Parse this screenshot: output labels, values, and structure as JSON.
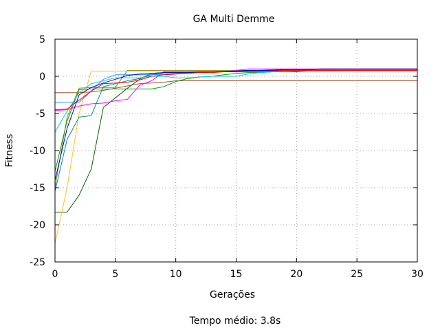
{
  "chart_data": {
    "type": "line",
    "title": "GA Multi Demme",
    "xlabel": "Gerações",
    "ylabel": "Fitness",
    "footer": "Tempo médio: 3.8s",
    "xlim": [
      0,
      30
    ],
    "ylim": [
      -25,
      5
    ],
    "xticks": [
      0,
      5,
      10,
      15,
      20,
      25,
      30
    ],
    "yticks": [
      -25,
      -20,
      -15,
      -10,
      -5,
      0,
      5
    ],
    "grid": true,
    "series": [
      {
        "color": "#a0522d",
        "x": [
          0,
          1,
          2,
          3,
          4,
          5,
          6,
          7,
          8,
          9,
          10,
          11,
          12,
          13,
          14,
          15,
          16,
          17,
          18,
          19,
          20,
          21,
          22,
          23,
          24,
          25,
          26,
          27,
          28,
          29,
          30
        ],
        "y": [
          -2.2,
          -2.2,
          -2.2,
          -2.1,
          -1.9,
          -1.6,
          -1.3,
          -1.0,
          -0.9,
          -0.8,
          -0.6,
          -0.6,
          -0.6,
          -0.6,
          -0.6,
          -0.6,
          -0.6,
          -0.6,
          -0.6,
          -0.6,
          -0.6,
          -0.6,
          -0.6,
          -0.6,
          -0.6,
          -0.6,
          -0.6,
          -0.6,
          -0.6,
          -0.6,
          -0.6
        ]
      },
      {
        "color": "#006400",
        "x": [
          0,
          1,
          2,
          3,
          4,
          5,
          6,
          7,
          8,
          9,
          10,
          11,
          12,
          13,
          14,
          15,
          16,
          17,
          18,
          19,
          20,
          21,
          22,
          23,
          24,
          25,
          26,
          27,
          28,
          29,
          30
        ],
        "y": [
          -18.3,
          -18.3,
          -16.0,
          -12.5,
          -4.2,
          -2.9,
          -1.6,
          -0.4,
          0.4,
          0.5,
          0.5,
          0.5,
          0.5,
          0.6,
          0.6,
          0.6,
          0.6,
          0.6,
          0.6,
          0.6,
          0.6,
          0.7,
          0.7,
          0.7,
          0.8,
          0.8,
          0.8,
          0.8,
          0.8,
          0.8,
          0.8
        ]
      },
      {
        "color": "#8b8b00",
        "x": [
          0,
          1,
          2,
          3,
          4,
          5,
          6,
          7,
          8,
          9,
          10,
          11,
          12,
          13,
          14,
          15,
          16,
          17,
          18,
          19,
          20,
          21,
          22,
          23,
          24,
          25,
          26,
          27,
          28,
          29,
          30
        ],
        "y": [
          -15.0,
          -5.5,
          -1.6,
          -1.5,
          -1.5,
          -1.5,
          0.8,
          0.8,
          0.8,
          0.8,
          0.8,
          0.8,
          0.8,
          0.8,
          0.8,
          0.8,
          0.8,
          0.8,
          0.8,
          0.8,
          0.8,
          0.8,
          0.8,
          0.8,
          0.8,
          0.8,
          0.8,
          0.8,
          0.8,
          0.8,
          0.8
        ]
      },
      {
        "color": "#ffc020",
        "x": [
          0,
          1,
          2,
          3,
          4,
          5,
          6,
          7,
          8,
          9,
          10,
          11,
          12,
          13,
          14,
          15,
          16,
          17,
          18,
          19,
          20,
          21,
          22,
          23,
          24,
          25,
          26,
          27,
          28,
          29,
          30
        ],
        "y": [
          -22.5,
          -15.0,
          -5.0,
          0.7,
          0.7,
          0.7,
          0.7,
          0.7,
          0.7,
          0.7,
          0.7,
          0.7,
          0.7,
          0.7,
          0.7,
          0.7,
          0.7,
          0.7,
          0.7,
          0.7,
          0.7,
          0.7,
          0.7,
          0.7,
          0.7,
          0.7,
          0.7,
          0.7,
          0.7,
          0.7,
          0.7
        ]
      },
      {
        "color": "#00a000",
        "x": [
          0,
          1,
          2,
          3,
          4,
          5,
          6,
          7,
          8,
          9,
          10,
          11,
          12,
          13,
          14,
          15,
          16,
          17,
          18,
          19,
          20,
          21,
          22,
          23,
          24,
          25,
          26,
          27,
          28,
          29,
          30
        ],
        "y": [
          -12.8,
          -6.0,
          -1.8,
          -1.7,
          -1.7,
          -1.7,
          -1.7,
          -1.7,
          -1.7,
          -1.4,
          -0.7,
          -0.3,
          -0.1,
          0.0,
          0.2,
          0.4,
          0.5,
          0.5,
          0.6,
          0.7,
          0.8,
          0.8,
          0.9,
          0.9,
          0.9,
          0.9,
          0.9,
          0.9,
          0.9,
          0.9,
          0.9
        ]
      },
      {
        "color": "#ff00ff",
        "x": [
          0,
          1,
          2,
          3,
          4,
          5,
          6,
          7,
          8,
          9,
          10,
          11,
          12,
          13,
          14,
          15,
          16,
          17,
          18,
          19,
          20,
          21,
          22,
          23,
          24,
          25,
          26,
          27,
          28,
          29,
          30
        ],
        "y": [
          -4.6,
          -4.5,
          -4.0,
          -3.7,
          -3.6,
          -3.3,
          -3.1,
          -1.2,
          -0.6,
          0.6,
          0.6,
          0.6,
          0.6,
          0.6,
          0.6,
          0.8,
          1.0,
          1.0,
          1.0,
          1.0,
          1.0,
          1.0,
          1.0,
          1.0,
          1.0,
          1.0,
          1.0,
          1.0,
          1.0,
          1.0,
          1.0
        ]
      },
      {
        "color": "#008b8b",
        "x": [
          0,
          1,
          2,
          3,
          4,
          5,
          6,
          7,
          8,
          9,
          10,
          11,
          12,
          13,
          14,
          15,
          16,
          17,
          18,
          19,
          20,
          21,
          22,
          23,
          24,
          25,
          26,
          27,
          28,
          29,
          30
        ],
        "y": [
          -15.5,
          -8.5,
          -5.5,
          -5.3,
          -1.4,
          -1.0,
          -0.6,
          -0.3,
          0.2,
          0.5,
          0.6,
          0.6,
          0.6,
          0.6,
          0.7,
          0.7,
          0.7,
          0.8,
          0.9,
          0.9,
          0.9,
          0.9,
          0.9,
          0.9,
          0.9,
          0.9,
          0.9,
          0.9,
          0.9,
          0.9,
          0.9
        ]
      },
      {
        "color": "#1e90ff",
        "x": [
          0,
          1,
          2,
          3,
          4,
          5,
          6,
          7,
          8,
          9,
          10,
          11,
          12,
          13,
          14,
          15,
          16,
          17,
          18,
          19,
          20,
          21,
          22,
          23,
          24,
          25,
          26,
          27,
          28,
          29,
          30
        ],
        "y": [
          -3.5,
          -3.5,
          -3.5,
          -2.0,
          -0.4,
          0.2,
          0.2,
          0.2,
          0.2,
          0.3,
          0.4,
          0.5,
          0.6,
          0.6,
          0.6,
          0.6,
          0.6,
          0.6,
          0.6,
          0.6,
          0.7,
          0.8,
          0.9,
          0.9,
          0.9,
          0.9,
          0.9,
          0.9,
          0.9,
          0.9,
          0.9
        ]
      },
      {
        "color": "#00ced1",
        "x": [
          0,
          1,
          2,
          3,
          4,
          5,
          6,
          7,
          8,
          9,
          10,
          11,
          12,
          13,
          14,
          15,
          16,
          17,
          18,
          19,
          20,
          21,
          22,
          23,
          24,
          25,
          26,
          27,
          28,
          29,
          30
        ],
        "y": [
          -7.5,
          -4.7,
          -2.2,
          -1.0,
          -0.6,
          -0.2,
          -0.2,
          -0.2,
          0.0,
          0.0,
          -0.2,
          -0.2,
          -0.1,
          0.0,
          0.0,
          0.0,
          0.3,
          0.5,
          0.6,
          0.6,
          0.8,
          0.9,
          0.9,
          0.9,
          0.9,
          0.9,
          0.9,
          0.9,
          0.9,
          0.9,
          0.9
        ]
      },
      {
        "color": "#ff0000",
        "x": [
          0,
          1,
          2,
          3,
          4,
          5,
          6,
          7,
          8,
          9,
          10,
          11,
          12,
          13,
          14,
          15,
          16,
          17,
          18,
          19,
          20,
          21,
          22,
          23,
          24,
          25,
          26,
          27,
          28,
          29,
          30
        ],
        "y": [
          -4.5,
          -4.4,
          -3.2,
          -2.0,
          -1.0,
          -0.9,
          -0.8,
          -0.5,
          0.0,
          0.2,
          0.3,
          0.4,
          0.5,
          0.5,
          0.6,
          0.6,
          0.7,
          0.7,
          0.7,
          0.8,
          0.8,
          0.8,
          0.8,
          0.8,
          0.8,
          0.8,
          0.8,
          0.8,
          0.8,
          0.8,
          0.8
        ]
      },
      {
        "color": "#0000cd",
        "x": [
          0,
          1,
          2,
          3,
          4,
          5,
          6,
          7,
          8,
          9,
          10,
          11,
          12,
          13,
          14,
          15,
          16,
          17,
          18,
          19,
          20,
          21,
          22,
          23,
          24,
          25,
          26,
          27,
          28,
          29,
          30
        ],
        "y": [
          -14.0,
          -7.0,
          -2.5,
          -1.5,
          -0.9,
          -0.4,
          0.1,
          0.3,
          0.4,
          0.5,
          0.5,
          0.5,
          0.6,
          0.6,
          0.6,
          0.7,
          0.8,
          0.8,
          0.8,
          0.9,
          0.9,
          0.9,
          1.0,
          1.0,
          1.0,
          1.0,
          1.0,
          1.0,
          1.0,
          1.0,
          1.0
        ]
      }
    ]
  }
}
